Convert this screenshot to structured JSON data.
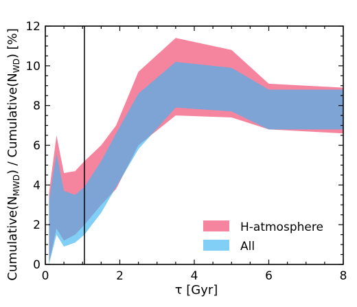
{
  "chart_data": {
    "type": "area",
    "xlabel": "τ [Gyr]",
    "ylabel": {
      "prefix": "Cumulative(N",
      "sub1": "MWD",
      "middle": ") / Cumulative(N",
      "sub2": "WD",
      "suffix": ") [%]"
    },
    "xlim": [
      0,
      8
    ],
    "ylim": [
      0,
      12
    ],
    "x_ticks": [
      "0",
      "2",
      "4",
      "6",
      "8"
    ],
    "y_ticks": [
      "0",
      "2",
      "4",
      "6",
      "8",
      "10",
      "12"
    ],
    "vline_x": 1.05,
    "grid": false,
    "legend_position": "bottom-right",
    "series": [
      {
        "name": "H-atmosphere",
        "color": "#f0446c",
        "opacity": 0.65,
        "x": [
          0.1,
          0.3,
          0.5,
          0.8,
          1.05,
          1.5,
          1.9,
          2.5,
          3.5,
          5.0,
          6.0,
          8.0
        ],
        "upper": [
          3.6,
          6.5,
          4.6,
          4.7,
          5.2,
          6.0,
          7.0,
          9.7,
          11.4,
          10.8,
          9.1,
          8.9
        ],
        "lower": [
          0.1,
          1.8,
          1.2,
          1.5,
          2.0,
          3.0,
          3.8,
          6.0,
          7.5,
          7.4,
          6.8,
          6.6
        ]
      },
      {
        "name": "All",
        "color": "#3db4f2",
        "opacity": 0.65,
        "x": [
          0.1,
          0.3,
          0.5,
          0.8,
          1.05,
          1.5,
          1.9,
          2.5,
          3.5,
          5.0,
          6.0,
          8.0
        ],
        "upper": [
          3.2,
          5.6,
          3.7,
          3.5,
          3.9,
          5.2,
          6.6,
          8.6,
          10.2,
          9.9,
          8.8,
          8.8
        ],
        "lower": [
          0.0,
          1.5,
          0.9,
          1.1,
          1.5,
          2.6,
          3.9,
          5.8,
          7.9,
          7.7,
          6.8,
          6.8
        ]
      }
    ]
  }
}
